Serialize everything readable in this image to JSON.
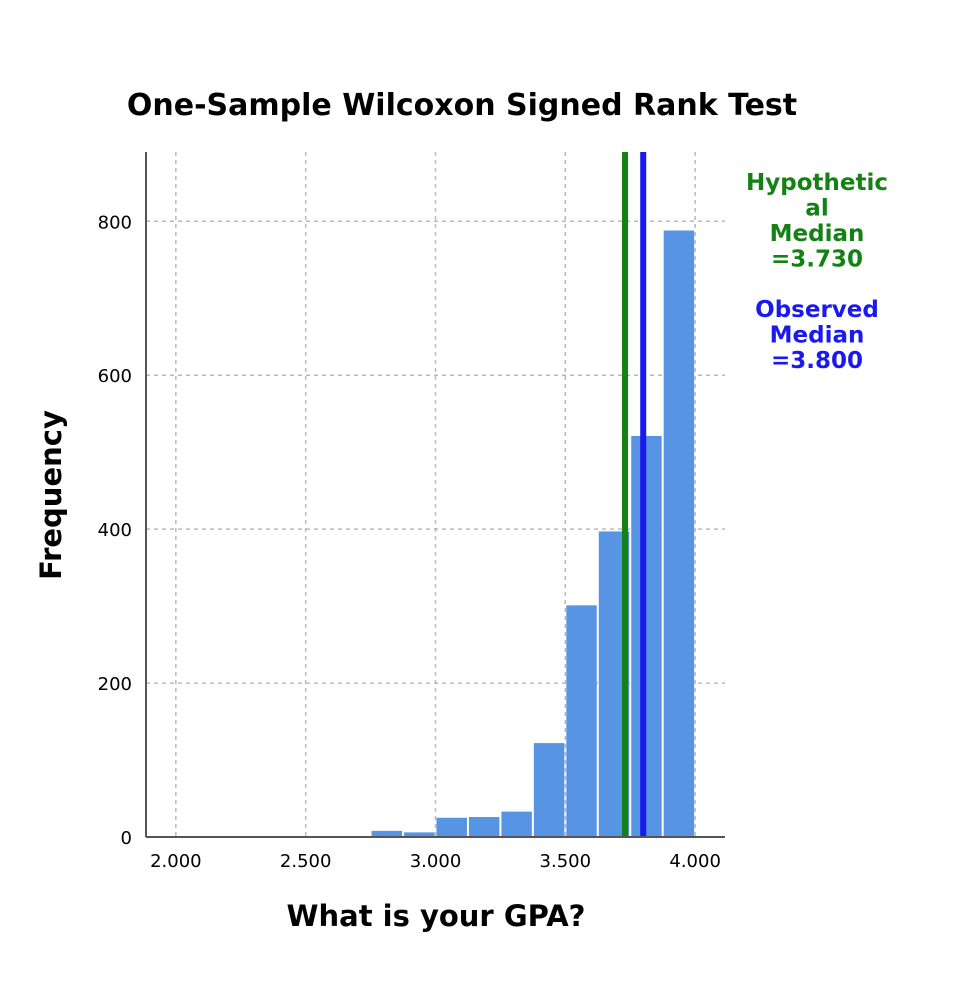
{
  "chart_data": {
    "type": "bar",
    "title": "One-Sample Wilcoxon Signed Rank Test",
    "xlabel": "What is your GPA?",
    "ylabel": "Frequency",
    "xlim": [
      1.885,
      4.115
    ],
    "ylim": [
      0,
      890
    ],
    "x_ticks": [
      2.0,
      2.5,
      3.0,
      3.5,
      4.0
    ],
    "x_tick_labels": [
      "2.000",
      "2.500",
      "3.000",
      "3.500",
      "4.000"
    ],
    "y_ticks": [
      0,
      200,
      400,
      600,
      800
    ],
    "y_tick_labels": [
      "0",
      "200",
      "400",
      "600",
      "800"
    ],
    "grid": true,
    "bin_width": 0.125,
    "bins": [
      {
        "start": 2.0,
        "end": 2.125,
        "value": 1
      },
      {
        "start": 2.125,
        "end": 2.25,
        "value": 1
      },
      {
        "start": 2.25,
        "end": 2.375,
        "value": 1
      },
      {
        "start": 2.375,
        "end": 2.5,
        "value": 1
      },
      {
        "start": 2.5,
        "end": 2.625,
        "value": 1
      },
      {
        "start": 2.625,
        "end": 2.75,
        "value": 1
      },
      {
        "start": 2.75,
        "end": 2.875,
        "value": 8
      },
      {
        "start": 2.875,
        "end": 3.0,
        "value": 6
      },
      {
        "start": 3.0,
        "end": 3.125,
        "value": 25
      },
      {
        "start": 3.125,
        "end": 3.25,
        "value": 26
      },
      {
        "start": 3.25,
        "end": 3.375,
        "value": 33
      },
      {
        "start": 3.375,
        "end": 3.5,
        "value": 122
      },
      {
        "start": 3.5,
        "end": 3.625,
        "value": 301
      },
      {
        "start": 3.625,
        "end": 3.75,
        "value": 397
      },
      {
        "start": 3.75,
        "end": 3.875,
        "value": 521
      },
      {
        "start": 3.875,
        "end": 4.0,
        "value": 788
      }
    ],
    "bar_color": "#5794e4",
    "reference_lines": [
      {
        "name": "Hypothetical Median",
        "value": 3.73,
        "color": "#138114",
        "label_lines": [
          "Hypothetic",
          "al",
          "Median",
          "=3.730"
        ]
      },
      {
        "name": "Observed Median",
        "value": 3.8,
        "color": "#1919f0",
        "label_lines": [
          "Observed",
          "Median",
          "=3.800"
        ]
      }
    ]
  }
}
